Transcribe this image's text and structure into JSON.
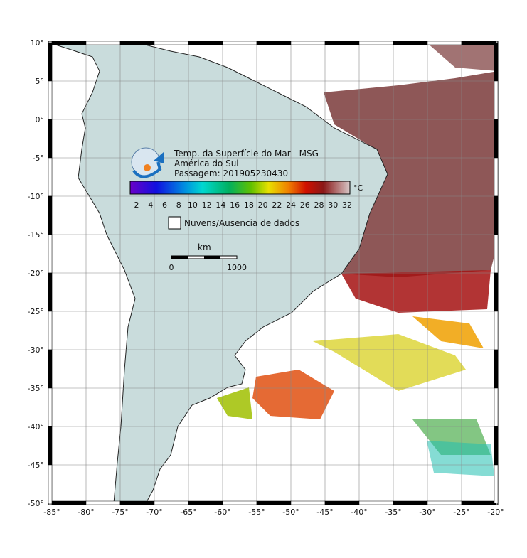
{
  "title_lines": [
    "Temp. da Superfície do Mar - MSG",
    "América do Sul",
    "Passagem: 201905230430"
  ],
  "colorbar": {
    "unit": "°C",
    "ticks": [
      2,
      4,
      6,
      8,
      10,
      12,
      14,
      16,
      18,
      20,
      22,
      24,
      26,
      28,
      30,
      32
    ]
  },
  "legend": "Nuvens/Ausencia de dados",
  "scale": {
    "unit": "km",
    "labels": [
      "0",
      "1000"
    ]
  },
  "lat_labels": [
    "10°",
    "5°",
    "0°",
    "-5°",
    "-10°",
    "-15°",
    "-20°",
    "-25°",
    "-30°",
    "-35°",
    "-40°",
    "-45°",
    "-50°"
  ],
  "lon_labels": [
    "-85°",
    "-80°",
    "-75°",
    "-70°",
    "-65°",
    "-60°",
    "-55°",
    "-50°",
    "-45°",
    "-40°",
    "-35°",
    "-30°",
    "-25°",
    "-20°"
  ]
}
